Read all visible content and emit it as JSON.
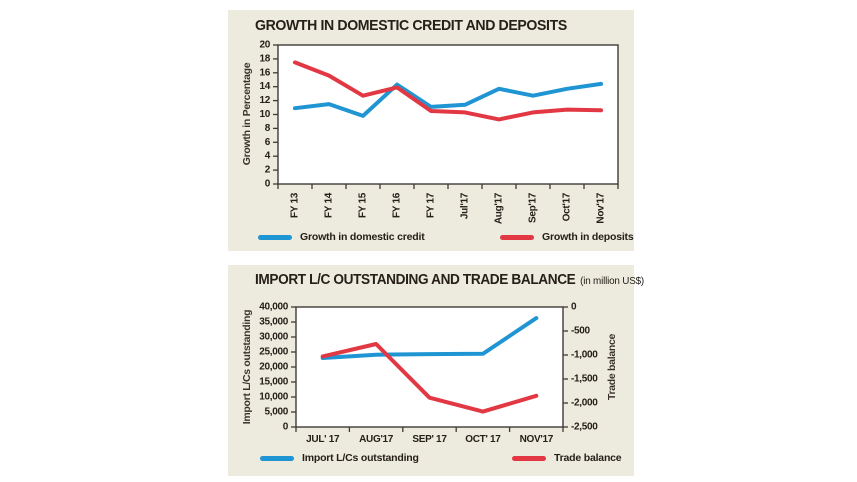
{
  "colors": {
    "page_bg": "#ffffff",
    "panel_bg": "#edeade",
    "plot_bg": "#ffffff",
    "axis": "#3f3a35",
    "text": "#262019",
    "series_blue": "#2095d3",
    "series_red": "#e23844"
  },
  "chart_data": [
    {
      "type": "line",
      "title": "GROWTH IN DOMESTIC CREDIT AND DEPOSITS",
      "subtitle": "",
      "ylabel": "Growth in Percentage",
      "xlabel": "",
      "ylim": [
        0,
        20
      ],
      "ytick_step": 2,
      "yticks": [
        "20",
        "18",
        "16",
        "14",
        "12",
        "10",
        "8",
        "6",
        "4",
        "2",
        "0"
      ],
      "grid": false,
      "legend_position": "bottom",
      "categories": [
        "FY 13",
        "FY 14",
        "FY 15",
        "FY 16",
        "FY 17",
        "Jul'17",
        "Aug'17",
        "Sep'17",
        "Oct'17",
        "Nov'17"
      ],
      "series": [
        {
          "name": "Growth in domestic credit",
          "axis": "left",
          "color": "#2095d3",
          "values": [
            10.9,
            11.5,
            9.8,
            14.3,
            11.1,
            11.4,
            13.7,
            12.7,
            13.7,
            14.4
          ]
        },
        {
          "name": "Growth in deposits",
          "axis": "left",
          "color": "#e23844",
          "values": [
            17.5,
            15.6,
            12.7,
            13.9,
            10.5,
            10.3,
            9.3,
            10.3,
            10.7,
            10.6
          ]
        }
      ]
    },
    {
      "type": "line",
      "title": "IMPORT L/C OUTSTANDING AND TRADE BALANCE",
      "subtitle": "(in million US$)",
      "ylabel_left": "Import L/Cs outstanding",
      "ylabel_right": "Trade balance",
      "xlabel": "",
      "ylim_left": [
        0,
        40000
      ],
      "ylim_right": [
        -2500,
        0
      ],
      "yticks_left": [
        "40,000",
        "35,000",
        "30,000",
        "25,000",
        "20,000",
        "15,000",
        "10,000",
        "5,000",
        "0"
      ],
      "yticks_right": [
        "0",
        "-500",
        "-1,000",
        "-1,500",
        "-2,000",
        "-2,500"
      ],
      "grid": false,
      "legend_position": "bottom",
      "categories": [
        "JUL' 17",
        "AUG'17",
        "SEP' 17",
        "OCT' 17",
        "NOV'17"
      ],
      "series": [
        {
          "name": "Import L/Cs outstanding",
          "axis": "left",
          "color": "#2095d3",
          "values": [
            23000,
            24100,
            24300,
            24400,
            36300
          ]
        },
        {
          "name": "Trade balance",
          "axis": "right",
          "color": "#e23844",
          "values": [
            -1030,
            -770,
            -1890,
            -2180,
            -1850
          ]
        }
      ]
    }
  ]
}
